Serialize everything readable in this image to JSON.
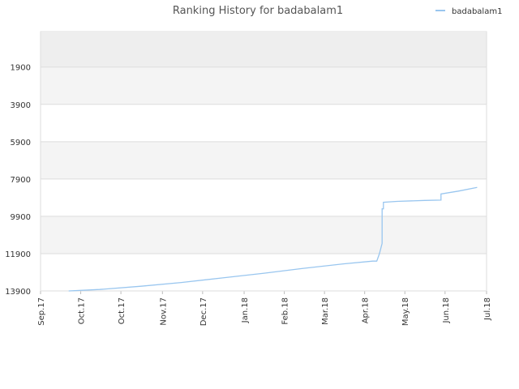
{
  "chart_data": {
    "type": "line",
    "title": "Ranking History for badabalam1",
    "xlabel": "",
    "ylabel": "",
    "y_inverted": true,
    "ylim": [
      13900,
      0
    ],
    "y_ticks": [
      1900,
      3900,
      5900,
      7900,
      9900,
      11900,
      13900
    ],
    "x_ticks": [
      {
        "label": "Sep.17",
        "date": "2017-09-01"
      },
      {
        "label": "Oct.17",
        "date": "2017-10-01"
      },
      {
        "label": "Oct.17",
        "date": "2017-10-31"
      },
      {
        "label": "Nov.17",
        "date": "2017-12-01"
      },
      {
        "label": "Dec.17",
        "date": "2017-12-31"
      },
      {
        "label": "Jan.18",
        "date": "2018-01-31"
      },
      {
        "label": "Feb.18",
        "date": "2018-03-02"
      },
      {
        "label": "Mar.18",
        "date": "2018-04-01"
      },
      {
        "label": "Apr.18",
        "date": "2018-05-01"
      },
      {
        "label": "May.18",
        "date": "2018-05-31"
      },
      {
        "label": "Jun.18",
        "date": "2018-06-30"
      },
      {
        "label": "Jul.18",
        "date": "2018-07-31"
      }
    ],
    "xlim": [
      "2017-09-01",
      "2018-07-31"
    ],
    "grid": true,
    "legend": "top-right",
    "colors": {
      "line": "#99c6ef",
      "band_dark": "#eeeeee",
      "band_light": "#f4f4f4",
      "grid": "#dddddd"
    },
    "series": [
      {
        "name": "badabalam1",
        "points": [
          [
            "2017-09-22",
            13900
          ],
          [
            "2017-10-15",
            13820
          ],
          [
            "2017-11-15",
            13650
          ],
          [
            "2017-12-15",
            13450
          ],
          [
            "2018-01-15",
            13200
          ],
          [
            "2018-02-15",
            12950
          ],
          [
            "2018-03-15",
            12700
          ],
          [
            "2018-04-15",
            12450
          ],
          [
            "2018-05-07",
            12300
          ],
          [
            "2018-05-10",
            12300
          ],
          [
            "2018-05-12",
            11900
          ],
          [
            "2018-05-14",
            11350
          ],
          [
            "2018-05-14",
            9500
          ],
          [
            "2018-05-15",
            9500
          ],
          [
            "2018-05-15",
            9150
          ],
          [
            "2018-05-25",
            9100
          ],
          [
            "2018-06-15",
            9050
          ],
          [
            "2018-06-27",
            9030
          ],
          [
            "2018-06-27",
            8700
          ],
          [
            "2018-07-10",
            8550
          ],
          [
            "2018-07-24",
            8350
          ]
        ]
      }
    ]
  }
}
